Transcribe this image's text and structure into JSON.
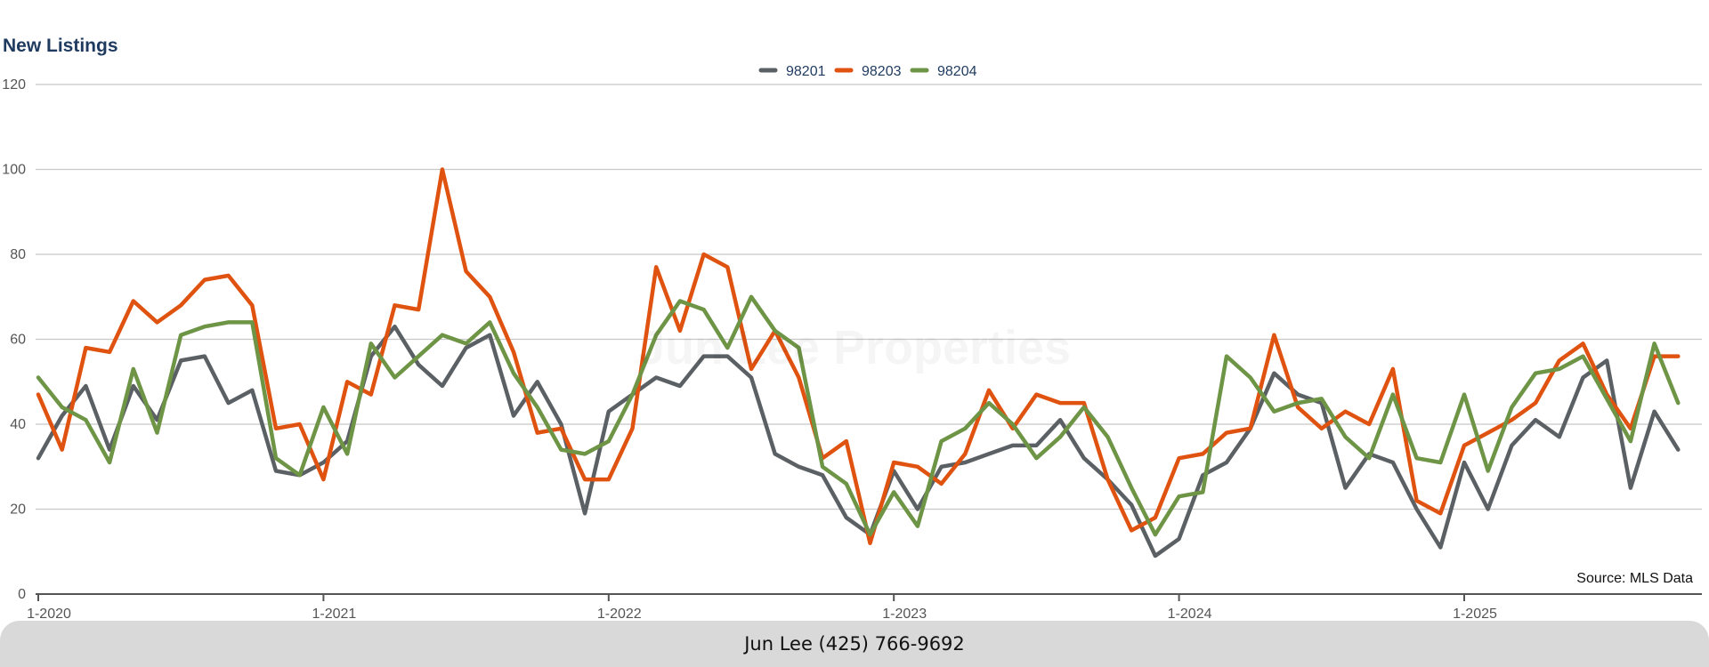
{
  "header": {
    "title": "New Listings"
  },
  "watermark": "Jun Lee Properties",
  "source_note": "Source: MLS Data",
  "footer": {
    "contact": "Jun Lee (425) 766-9692"
  },
  "colors": {
    "98201": "#5b6064",
    "98203": "#e0520f",
    "98204": "#6e9446",
    "grid": "#c8c8c8",
    "axis": "#555555"
  },
  "chart_data": {
    "type": "line",
    "title": "New Listings",
    "xlabel": "",
    "ylabel": "",
    "ylim": [
      0,
      120
    ],
    "yticks": [
      0,
      20,
      40,
      60,
      80,
      100,
      120
    ],
    "grid": true,
    "legend_position": "top-center",
    "x_start": "1-2020",
    "xtick_labels": [
      "1-2020",
      "1-2021",
      "1-2022",
      "1-2023",
      "1-2024",
      "1-2025"
    ],
    "series": [
      {
        "name": "98201",
        "color": "#5b6064",
        "values": [
          32,
          42,
          49,
          34,
          49,
          41,
          55,
          56,
          45,
          48,
          29,
          28,
          31,
          36,
          56,
          63,
          54,
          49,
          58,
          61,
          42,
          50,
          40,
          19,
          43,
          47,
          51,
          49,
          56,
          56,
          51,
          33,
          30,
          28,
          18,
          14,
          29,
          20,
          30,
          31,
          33,
          35,
          35,
          41,
          32,
          27,
          21,
          9,
          13,
          28,
          31,
          39,
          52,
          47,
          45,
          25,
          33,
          31,
          20,
          11,
          31,
          20,
          35,
          41,
          37,
          51,
          55,
          25,
          43,
          34
        ]
      },
      {
        "name": "98203",
        "color": "#e0520f",
        "values": [
          47,
          34,
          58,
          57,
          69,
          64,
          68,
          74,
          75,
          68,
          39,
          40,
          27,
          50,
          47,
          68,
          67,
          100,
          76,
          70,
          57,
          38,
          39,
          27,
          27,
          39,
          77,
          62,
          80,
          77,
          53,
          62,
          51,
          32,
          36,
          12,
          31,
          30,
          26,
          33,
          48,
          39,
          47,
          45,
          45,
          27,
          15,
          18,
          32,
          33,
          38,
          39,
          61,
          44,
          39,
          43,
          40,
          53,
          22,
          19,
          35,
          38,
          41,
          45,
          55,
          59,
          47,
          39,
          56,
          56
        ]
      },
      {
        "name": "98204",
        "color": "#6e9446",
        "values": [
          51,
          44,
          41,
          31,
          53,
          38,
          61,
          63,
          64,
          64,
          32,
          28,
          44,
          33,
          59,
          51,
          56,
          61,
          59,
          64,
          52,
          44,
          34,
          33,
          36,
          47,
          61,
          69,
          67,
          58,
          70,
          62,
          58,
          30,
          26,
          14,
          24,
          16,
          36,
          39,
          45,
          40,
          32,
          37,
          44,
          37,
          25,
          14,
          23,
          24,
          56,
          51,
          43,
          45,
          46,
          37,
          32,
          47,
          32,
          31,
          47,
          29,
          44,
          52,
          53,
          56,
          46,
          36,
          59,
          45
        ]
      }
    ]
  }
}
